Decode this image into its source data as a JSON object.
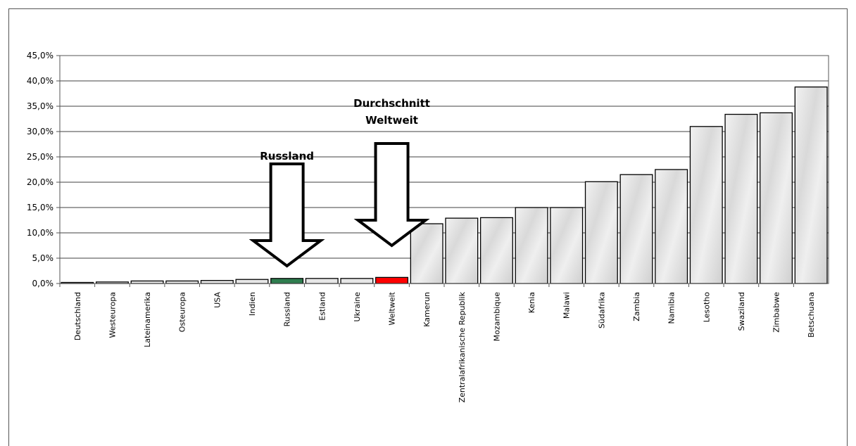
{
  "chart_data": {
    "type": "bar",
    "title": "",
    "xlabel": "",
    "ylabel": "",
    "ylim": [
      0,
      45
    ],
    "y_ticks": [
      "0,0%",
      "5,0%",
      "10,0%",
      "15,0%",
      "20,0%",
      "25,0%",
      "30,0%",
      "35,0%",
      "40,0%",
      "45,0%"
    ],
    "grid": true,
    "categories": [
      "Deutschland",
      "Westeuropa",
      "Lateinamerika",
      "Osteuropa",
      "USA",
      "Indien",
      "Russland",
      "Estland",
      "Ukraine",
      "Weltweit",
      "Kamerun",
      "Zentralafrikanische Republik",
      "Mozambique",
      "Kenia",
      "Malawi",
      "Südafrika",
      "Zambia",
      "Namibia",
      "Lesotho",
      "Swaziland",
      "Zimbabwe",
      "Betschuana"
    ],
    "values": [
      0.1,
      0.3,
      0.5,
      0.5,
      0.6,
      0.8,
      1.0,
      1.0,
      1.0,
      1.2,
      11.8,
      12.9,
      13.0,
      15.0,
      15.0,
      20.1,
      21.5,
      22.5,
      31.0,
      33.4,
      33.7,
      38.8
    ],
    "highlight_colors": {
      "Russland": "#2e7d4f",
      "Weltweit": "#ff0000"
    },
    "default_color": "#e6e6e6",
    "annotations": [
      {
        "text": "Russland",
        "target": "Russland"
      },
      {
        "text_lines": [
          "Durchschnitt",
          "Weltweit"
        ],
        "target": "Weltweit"
      }
    ]
  }
}
